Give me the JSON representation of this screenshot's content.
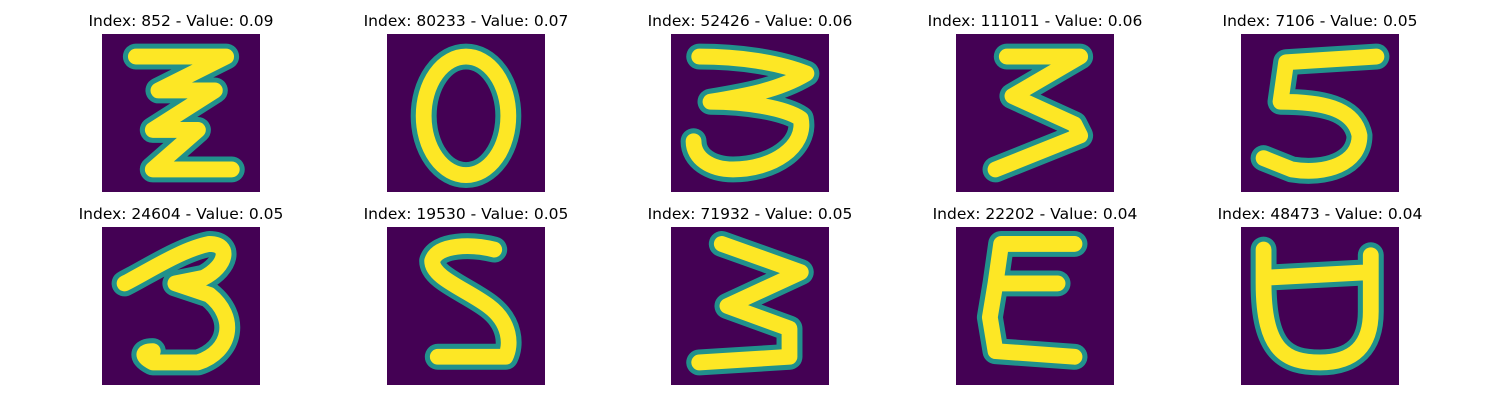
{
  "background_color": "#440154",
  "stroke_color": "#fde725",
  "edge_color": "#21918c",
  "panels": [
    {
      "title": "Index: 852 - Value: 0.09",
      "glyph": "zigzag-z"
    },
    {
      "title": "Index: 80233 - Value: 0.07",
      "glyph": "zero"
    },
    {
      "title": "Index: 52426 - Value: 0.06",
      "glyph": "three"
    },
    {
      "title": "Index: 111011 - Value: 0.06",
      "glyph": "three"
    },
    {
      "title": "Index: 7106 - Value: 0.05",
      "glyph": "five"
    },
    {
      "title": "Index: 24604 - Value: 0.05",
      "glyph": "three"
    },
    {
      "title": "Index: 19530 - Value: 0.05",
      "glyph": "five"
    },
    {
      "title": "Index: 71932 - Value: 0.05",
      "glyph": "three"
    },
    {
      "title": "Index: 22202 - Value: 0.04",
      "glyph": "epsilon"
    },
    {
      "title": "Index: 48473 - Value: 0.04",
      "glyph": "cup"
    }
  ]
}
